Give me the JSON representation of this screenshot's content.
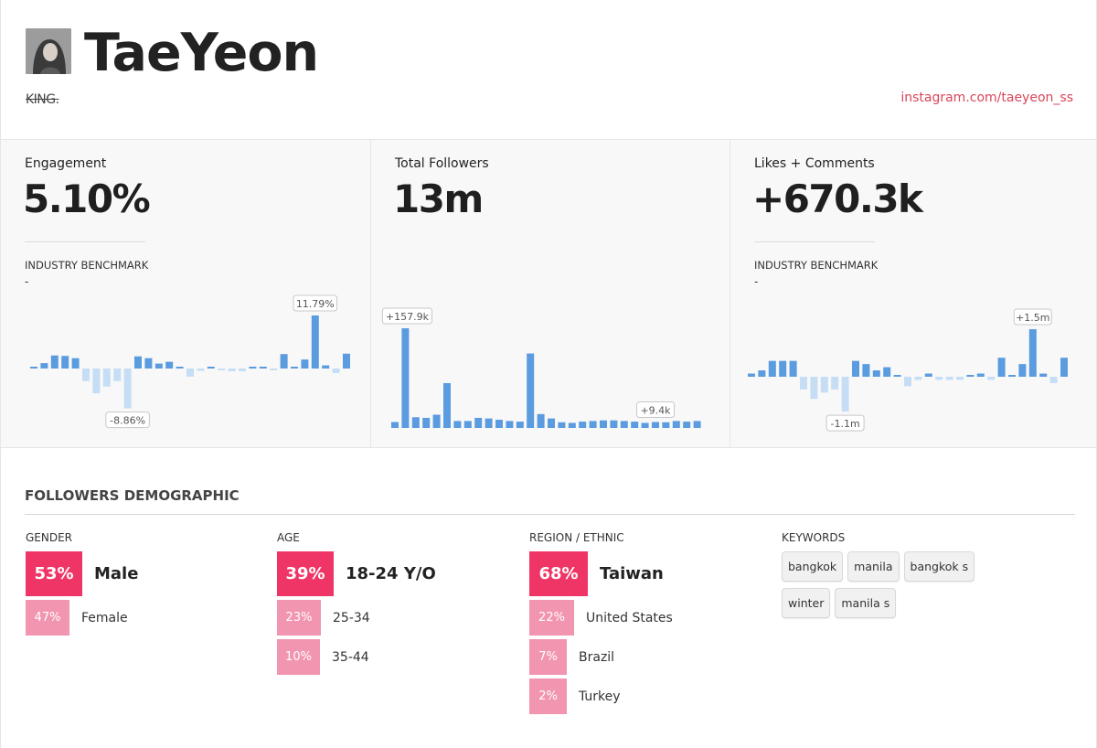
{
  "profile": {
    "name": "TaeYeon",
    "bio": "KING.",
    "link": "instagram.com/taeyeon_ss"
  },
  "stats": [
    {
      "label": "Engagement",
      "value": "5.10%",
      "benchmark_label": "INDUSTRY BENCHMARK",
      "benchmark_value": "-",
      "chart_data": {
        "type": "bar",
        "values": [
          0.4,
          1.2,
          2.9,
          2.8,
          2.3,
          -2.8,
          -5.5,
          -4.0,
          -2.8,
          -8.86,
          2.7,
          2.3,
          1.1,
          1.5,
          0.3,
          -1.8,
          -0.5,
          0.4,
          -0.4,
          -0.6,
          -0.6,
          0.2,
          0.3,
          -0.4,
          3.2,
          0.0,
          2.0,
          11.79,
          0.7,
          -1.0,
          3.3
        ],
        "max_label": "11.79%",
        "min_label": "-8.86%"
      }
    },
    {
      "label": "Total Followers",
      "value": "13m",
      "chart_data": {
        "type": "bar",
        "values": [
          9.4,
          157.9,
          17.0,
          16.0,
          21.0,
          71.0,
          11.0,
          11.0,
          16.0,
          15.0,
          13.0,
          11.0,
          10.0,
          118.0,
          22.0,
          15.0,
          9.0,
          8.0,
          10.0,
          11.0,
          12.0,
          12.0,
          11.0,
          10.0,
          8.0,
          9.4,
          9.0,
          11.0,
          10.0,
          11.0
        ],
        "max_label": "+157.9k",
        "min_label": "+9.4k"
      }
    },
    {
      "label": "Likes + Comments",
      "value": "+670.3k",
      "benchmark_label": "INDUSTRY BENCHMARK",
      "benchmark_value": "-",
      "chart_data": {
        "type": "bar",
        "values": [
          0.1,
          0.2,
          0.5,
          0.5,
          0.5,
          -0.4,
          -0.7,
          -0.5,
          -0.4,
          -1.1,
          0.5,
          0.4,
          0.2,
          0.3,
          0.0,
          -0.3,
          -0.1,
          0.1,
          -0.1,
          -0.1,
          -0.1,
          0.0,
          0.1,
          -0.1,
          0.6,
          0.0,
          0.4,
          1.5,
          0.1,
          -0.2,
          0.6
        ],
        "max_label": "+1.5m",
        "min_label": "-1.1m"
      }
    }
  ],
  "demographic": {
    "title": "FOLLOWERS DEMOGRAPHIC",
    "gender": {
      "title": "GENDER",
      "rows": [
        {
          "pct": "53%",
          "label": "Male",
          "value": 53
        },
        {
          "pct": "47%",
          "label": "Female",
          "value": 47
        }
      ]
    },
    "age": {
      "title": "AGE",
      "rows": [
        {
          "pct": "39%",
          "label": "18-24 Y/O",
          "value": 39
        },
        {
          "pct": "23%",
          "label": "25-34",
          "value": 23
        },
        {
          "pct": "10%",
          "label": "35-44",
          "value": 10
        }
      ]
    },
    "region": {
      "title": "REGION / ETHNIC",
      "rows": [
        {
          "pct": "68%",
          "label": "Taiwan",
          "value": 68
        },
        {
          "pct": "22%",
          "label": "United States",
          "value": 22
        },
        {
          "pct": "7%",
          "label": "Brazil",
          "value": 7
        },
        {
          "pct": "2%",
          "label": "Turkey",
          "value": 2
        }
      ]
    },
    "keywords": {
      "title": "KEYWORDS",
      "items": [
        "bangkok",
        "manila",
        "bangkok s",
        "winter",
        "manila s"
      ]
    }
  },
  "colors": {
    "bar_positive": "#5b9be0",
    "bar_negative": "#c5def6",
    "accent": "#ef3566",
    "accent_light": "#f295b0",
    "link": "#d9455a"
  }
}
